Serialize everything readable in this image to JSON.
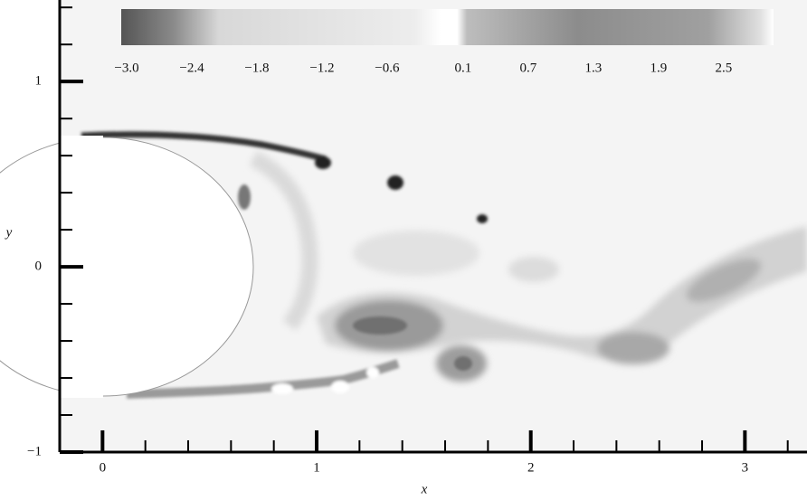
{
  "chart_data": {
    "type": "contour",
    "xlabel": "x",
    "ylabel": "y",
    "xlim": [
      -0.2,
      3.29
    ],
    "ylim": [
      -1,
      1.44
    ],
    "xticks": [
      0,
      1,
      2,
      3
    ],
    "yticks": [
      {
        "value": -1,
        "label": "−1"
      },
      0,
      1
    ],
    "xminorticks": [
      -0.2,
      0.2,
      0.4,
      0.6,
      0.8,
      1.2,
      1.4,
      1.6,
      1.8,
      2.2,
      2.4,
      2.6,
      2.8,
      3.2
    ],
    "yminorticks": [
      -0.8,
      -0.6,
      -0.4,
      -0.2,
      0.2,
      0.4,
      0.6,
      0.8,
      1.2,
      1.4
    ],
    "grid": false,
    "colorbar": {
      "lim": [
        -3.05,
        2.96
      ],
      "ticks": [
        {
          "value": -3,
          "label": "−3.0"
        },
        {
          "value": -2.4,
          "label": "−2.4"
        },
        {
          "value": -1.8,
          "label": "−1.8"
        },
        {
          "value": -1.2,
          "label": "−1.2"
        },
        {
          "value": -0.6,
          "label": "−0.6"
        },
        0.1,
        0.7,
        1.3,
        1.9,
        2.5
      ]
    }
  }
}
